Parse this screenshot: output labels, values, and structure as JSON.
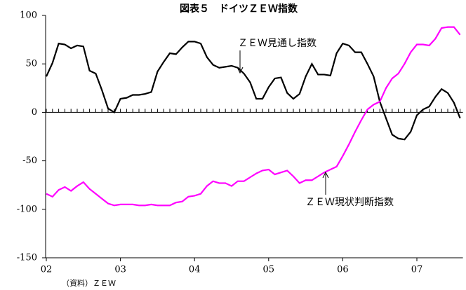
{
  "chart_data": {
    "type": "line",
    "title": "図表５　ドイツＺＥＷ指数",
    "categories": [
      "02",
      null,
      null,
      null,
      null,
      null,
      null,
      null,
      null,
      null,
      null,
      null,
      "03",
      null,
      null,
      null,
      null,
      null,
      null,
      null,
      null,
      null,
      null,
      null,
      "04",
      null,
      null,
      null,
      null,
      null,
      null,
      null,
      null,
      null,
      null,
      null,
      "05",
      null,
      null,
      null,
      null,
      null,
      null,
      null,
      null,
      null,
      null,
      null,
      "06",
      null,
      null,
      null,
      null,
      null,
      null,
      null,
      null,
      null,
      null,
      null,
      "07",
      null,
      null,
      null,
      null,
      null,
      null,
      null
    ],
    "series": [
      {
        "name": "ＺＥＷ見通し指数",
        "color": "#000000",
        "values": [
          37,
          51,
          71,
          70,
          66,
          69,
          68,
          43,
          40,
          23,
          4,
          0,
          14,
          15,
          18,
          18,
          19,
          21,
          42,
          52,
          61,
          60,
          67,
          73,
          73,
          71,
          57,
          49,
          46,
          47,
          48,
          46,
          40,
          31,
          14,
          14,
          26,
          35,
          36,
          20,
          14,
          19,
          37,
          50,
          39,
          39,
          38,
          61,
          71,
          69,
          62,
          62,
          50,
          37,
          11,
          -6,
          -23,
          -27,
          -28,
          -20,
          -3,
          3,
          6,
          16,
          24,
          20,
          10,
          -6
        ]
      },
      {
        "name": "ＺＥＷ現状判断指数",
        "color": "#ff00ff",
        "values": [
          -84,
          -87,
          -80,
          -77,
          -81,
          -76,
          -72,
          -79,
          -84,
          -89,
          -94,
          -96,
          -95,
          -95,
          -95,
          -96,
          -96,
          -95,
          -96,
          -96,
          -96,
          -93,
          -92,
          -87,
          -86,
          -84,
          -76,
          -71,
          -73,
          -73,
          -76,
          -71,
          -71,
          -67,
          -63,
          -60,
          -59,
          -64,
          -62,
          -60,
          -66,
          -73,
          -70,
          -70,
          -66,
          -62,
          -59,
          -56,
          -45,
          -33,
          -20,
          -8,
          3,
          8,
          11,
          25,
          35,
          40,
          50,
          62,
          70,
          70,
          69,
          76,
          87,
          88,
          88,
          80
        ]
      }
    ],
    "ylim": [
      -150,
      100
    ],
    "yticks": [
      -150,
      -100,
      -50,
      0,
      50,
      100
    ],
    "source": "（資料）ＺＥＷ"
  }
}
